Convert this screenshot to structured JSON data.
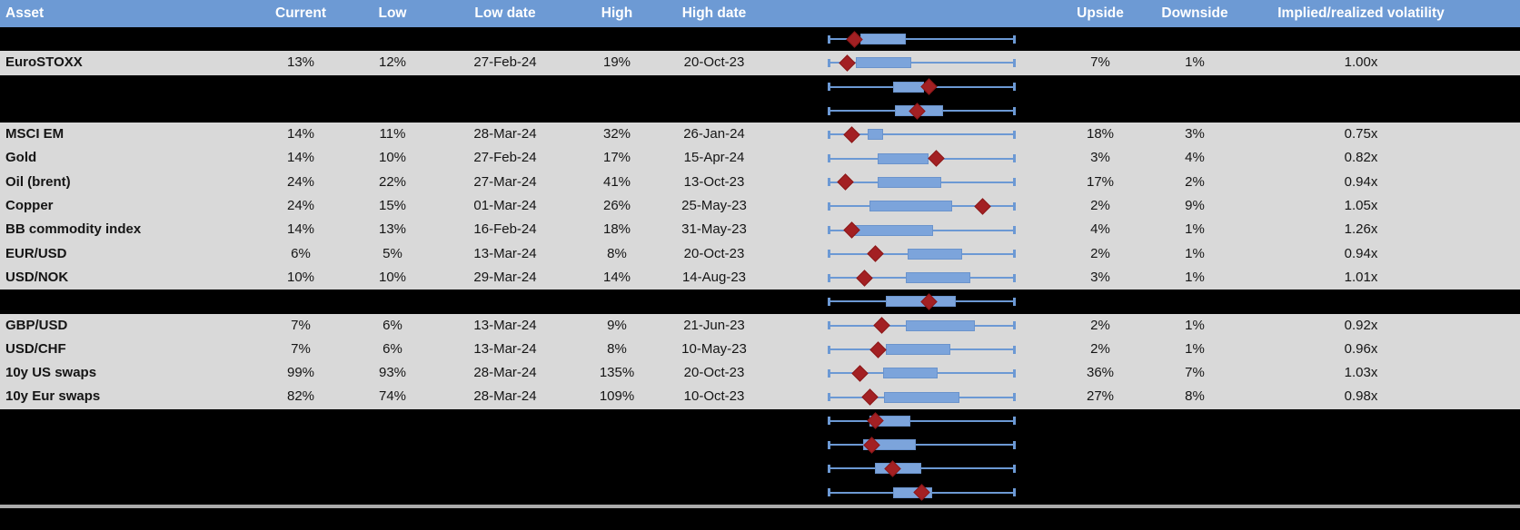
{
  "columns": {
    "asset": "Asset",
    "current": "Current",
    "low": "Low",
    "low_date": "Low date",
    "high": "High",
    "high_date": "High date",
    "chart": "",
    "upside": "Upside",
    "downside": "Downside",
    "implied": "Implied/realized volatility"
  },
  "colors": {
    "header_bg": "#6D9AD4",
    "row_gray": "#D9D9D9",
    "row_black": "#000000",
    "whisker_blue": "#6C99D4",
    "box_blue": "#7CA4DB",
    "diamond_red": "#A32023",
    "separator_gray": "#ABABAB",
    "header_text": "#FFFFFF"
  },
  "chart_data": {
    "type": "boxplot-rows",
    "note": "Each row: horizontal whisker spanning full normalized range (0-100), blue inter-quartile box (box_start..box_end) and red diamond marker (diamond), values are % of track width.",
    "axis_range": [
      0,
      100
    ]
  },
  "rows": [
    {
      "kind": "chart-only",
      "box_start": 17.1,
      "box_end": 41.5,
      "diamond": 13.7
    },
    {
      "kind": "data",
      "asset": "EuroSTOXX",
      "current": "13%",
      "low": "12%",
      "low_date": "27-Feb-24",
      "high": "19%",
      "high_date": "20-Oct-23",
      "upside": "7%",
      "downside": "1%",
      "implied": "1.00x",
      "box_start": 14.6,
      "box_end": 44.4,
      "diamond": 9.8
    },
    {
      "kind": "chart-only",
      "box_start": 34.6,
      "box_end": 51.2,
      "diamond": 53.7
    },
    {
      "kind": "chart-only",
      "box_start": 35.6,
      "box_end": 61.5,
      "diamond": 47.8
    },
    {
      "kind": "data",
      "asset": "MSCI EM",
      "current": "14%",
      "low": "11%",
      "low_date": "28-Mar-24",
      "high": "32%",
      "high_date": "26-Jan-24",
      "upside": "18%",
      "downside": "3%",
      "implied": "0.75x",
      "box_start": 21.0,
      "box_end": 29.3,
      "diamond": 12.2
    },
    {
      "kind": "data",
      "asset": "Gold",
      "current": "14%",
      "low": "10%",
      "low_date": "27-Feb-24",
      "high": "17%",
      "high_date": "15-Apr-24",
      "upside": "3%",
      "downside": "4%",
      "implied": "0.82x",
      "box_start": 26.3,
      "box_end": 53.7,
      "diamond": 57.6
    },
    {
      "kind": "data",
      "asset": "Oil (brent)",
      "current": "24%",
      "low": "22%",
      "low_date": "27-Mar-24",
      "high": "41%",
      "high_date": "13-Oct-23",
      "upside": "17%",
      "downside": "2%",
      "implied": "0.94x",
      "box_start": 26.3,
      "box_end": 60.5,
      "diamond": 8.8
    },
    {
      "kind": "data",
      "asset": "Copper",
      "current": "24%",
      "low": "15%",
      "low_date": "01-Mar-24",
      "high": "26%",
      "high_date": "25-May-23",
      "upside": "2%",
      "downside": "9%",
      "implied": "1.05x",
      "box_start": 22.0,
      "box_end": 66.3,
      "diamond": 82.9
    },
    {
      "kind": "data",
      "asset": "BB commodity index",
      "current": "14%",
      "low": "13%",
      "low_date": "16-Feb-24",
      "high": "18%",
      "high_date": "31-May-23",
      "upside": "4%",
      "downside": "1%",
      "implied": "1.26x",
      "box_start": 12.7,
      "box_end": 56.1,
      "diamond": 12.2
    },
    {
      "kind": "data",
      "asset": "EUR/USD",
      "current": "6%",
      "low": "5%",
      "low_date": "13-Mar-24",
      "high": "8%",
      "high_date": "20-Oct-23",
      "upside": "2%",
      "downside": "1%",
      "implied": "0.94x",
      "box_start": 42.4,
      "box_end": 71.7,
      "diamond": 24.9
    },
    {
      "kind": "data",
      "asset": "USD/NOK",
      "current": "10%",
      "low": "10%",
      "low_date": "29-Mar-24",
      "high": "14%",
      "high_date": "14-Aug-23",
      "upside": "3%",
      "downside": "1%",
      "implied": "1.01x",
      "box_start": 41.5,
      "box_end": 76.1,
      "diamond": 19.5
    },
    {
      "kind": "chart-only",
      "box_start": 30.7,
      "box_end": 68.3,
      "diamond": 53.7
    },
    {
      "kind": "data",
      "asset": "GBP/USD",
      "current": "7%",
      "low": "6%",
      "low_date": "13-Mar-24",
      "high": "9%",
      "high_date": "21-Jun-23",
      "upside": "2%",
      "downside": "1%",
      "implied": "0.92x",
      "box_start": 41.5,
      "box_end": 78.5,
      "diamond": 28.3
    },
    {
      "kind": "data",
      "asset": "USD/CHF",
      "current": "7%",
      "low": "6%",
      "low_date": "13-Mar-24",
      "high": "8%",
      "high_date": "10-May-23",
      "upside": "2%",
      "downside": "1%",
      "implied": "0.96x",
      "box_start": 30.7,
      "box_end": 65.4,
      "diamond": 26.8
    },
    {
      "kind": "data",
      "asset": "10y US swaps",
      "current": "99%",
      "low": "93%",
      "low_date": "28-Mar-24",
      "high": "135%",
      "high_date": "20-Oct-23",
      "upside": "36%",
      "downside": "7%",
      "implied": "1.03x",
      "box_start": 29.3,
      "box_end": 58.5,
      "diamond": 16.6
    },
    {
      "kind": "data",
      "asset": "10y Eur swaps",
      "current": "82%",
      "low": "74%",
      "low_date": "28-Mar-24",
      "high": "109%",
      "high_date": "10-Oct-23",
      "upside": "27%",
      "downside": "8%",
      "implied": "0.98x",
      "box_start": 29.8,
      "box_end": 70.2,
      "diamond": 22.4
    },
    {
      "kind": "chart-only",
      "box_start": 22.0,
      "box_end": 43.9,
      "diamond": 24.9
    },
    {
      "kind": "chart-only",
      "box_start": 18.5,
      "box_end": 46.8,
      "diamond": 23.4
    },
    {
      "kind": "chart-only",
      "box_start": 24.9,
      "box_end": 49.8,
      "diamond": 34.6
    },
    {
      "kind": "chart-only",
      "box_start": 34.6,
      "box_end": 55.6,
      "diamond": 49.8
    }
  ]
}
